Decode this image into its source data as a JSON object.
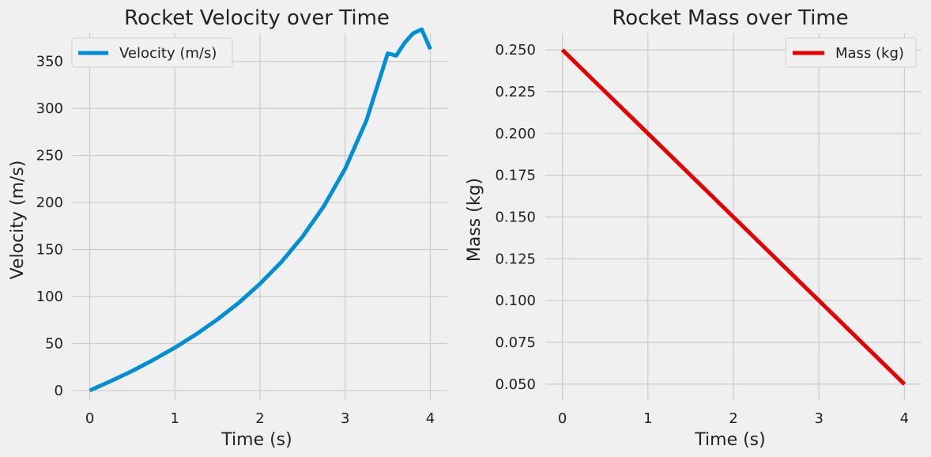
{
  "chart_data": [
    {
      "type": "line",
      "title": "Rocket Velocity over Time",
      "xlabel": "Time (s)",
      "ylabel": "Velocity (m/s)",
      "xlim": [
        -0.2,
        4.2
      ],
      "ylim": [
        -11,
        380
      ],
      "xticks": [
        0,
        1,
        2,
        3,
        4
      ],
      "yticks": [
        0,
        50,
        100,
        150,
        200,
        250,
        300,
        350
      ],
      "grid": true,
      "legend": "top-left",
      "series": [
        {
          "name": "Velocity (m/s)",
          "color": "#008fd5",
          "x": [
            0,
            0.25,
            0.5,
            0.75,
            1.0,
            1.25,
            1.5,
            1.75,
            2.0,
            2.25,
            2.5,
            2.75,
            3.0,
            3.25,
            3.5,
            3.6,
            3.7,
            3.8,
            3.9,
            4.0
          ],
          "y": [
            0,
            10.1,
            20.9,
            32.7,
            45.6,
            59.8,
            75.6,
            93.3,
            113.5,
            136.6,
            163.7,
            196.1,
            235.8,
            287.3,
            358.6,
            356.1,
            370,
            380,
            384,
            363
          ]
        }
      ]
    },
    {
      "type": "line",
      "title": "Rocket Mass over Time",
      "xlabel": "Time (s)",
      "ylabel": "Mass (kg)",
      "xlim": [
        -0.2,
        4.2
      ],
      "ylim": [
        0.04,
        0.26
      ],
      "xticks": [
        0,
        1,
        2,
        3,
        4
      ],
      "yticks": [
        0.05,
        0.075,
        0.1,
        0.125,
        0.15,
        0.175,
        0.2,
        0.225,
        0.25
      ],
      "ytick_labels": [
        "0.050",
        "0.075",
        "0.100",
        "0.125",
        "0.150",
        "0.175",
        "0.200",
        "0.225",
        "0.250"
      ],
      "grid": true,
      "legend": "top-right",
      "series": [
        {
          "name": "Mass (kg)",
          "color": "#e60000",
          "x": [
            0,
            1,
            2,
            3,
            4
          ],
          "y": [
            0.25,
            0.2,
            0.15,
            0.1,
            0.05
          ]
        }
      ]
    }
  ]
}
